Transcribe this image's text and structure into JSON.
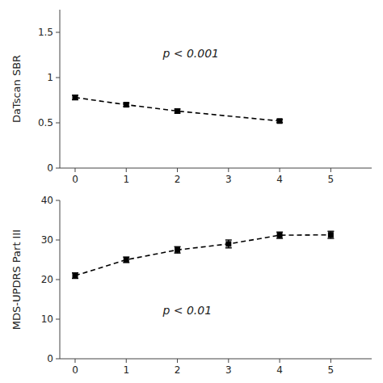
{
  "chart_data": [
    {
      "type": "line",
      "x": [
        0,
        1,
        2,
        4
      ],
      "values": [
        0.78,
        0.7,
        0.63,
        0.52
      ],
      "errors": [
        0.025,
        0.02,
        0.022,
        0.018
      ],
      "ylabel": "DaTscan SBR",
      "xlim": [
        -0.3,
        5.8
      ],
      "ylim": [
        0,
        1.75
      ],
      "yticks": [
        0,
        0.5,
        1,
        1.5
      ],
      "xticks": [
        0,
        1,
        2,
        3,
        4,
        5
      ],
      "annotation": "p < 0.001",
      "color": "black",
      "marker": "square",
      "line_style": "dashed"
    },
    {
      "type": "line",
      "x": [
        0,
        1,
        2,
        3,
        4,
        5
      ],
      "values": [
        21.0,
        25.0,
        27.5,
        29.0,
        31.2,
        31.3
      ],
      "errors": [
        0.7,
        0.7,
        0.8,
        1.0,
        0.8,
        0.9
      ],
      "ylabel": "MDS-UPDRS Part III",
      "xlim": [
        -0.3,
        5.8
      ],
      "ylim": [
        0,
        40
      ],
      "yticks": [
        0,
        10,
        20,
        30,
        40
      ],
      "xticks": [
        0,
        1,
        2,
        3,
        4,
        5
      ],
      "annotation": "p < 0.01",
      "color": "black",
      "marker": "square",
      "line_style": "dashed"
    }
  ]
}
